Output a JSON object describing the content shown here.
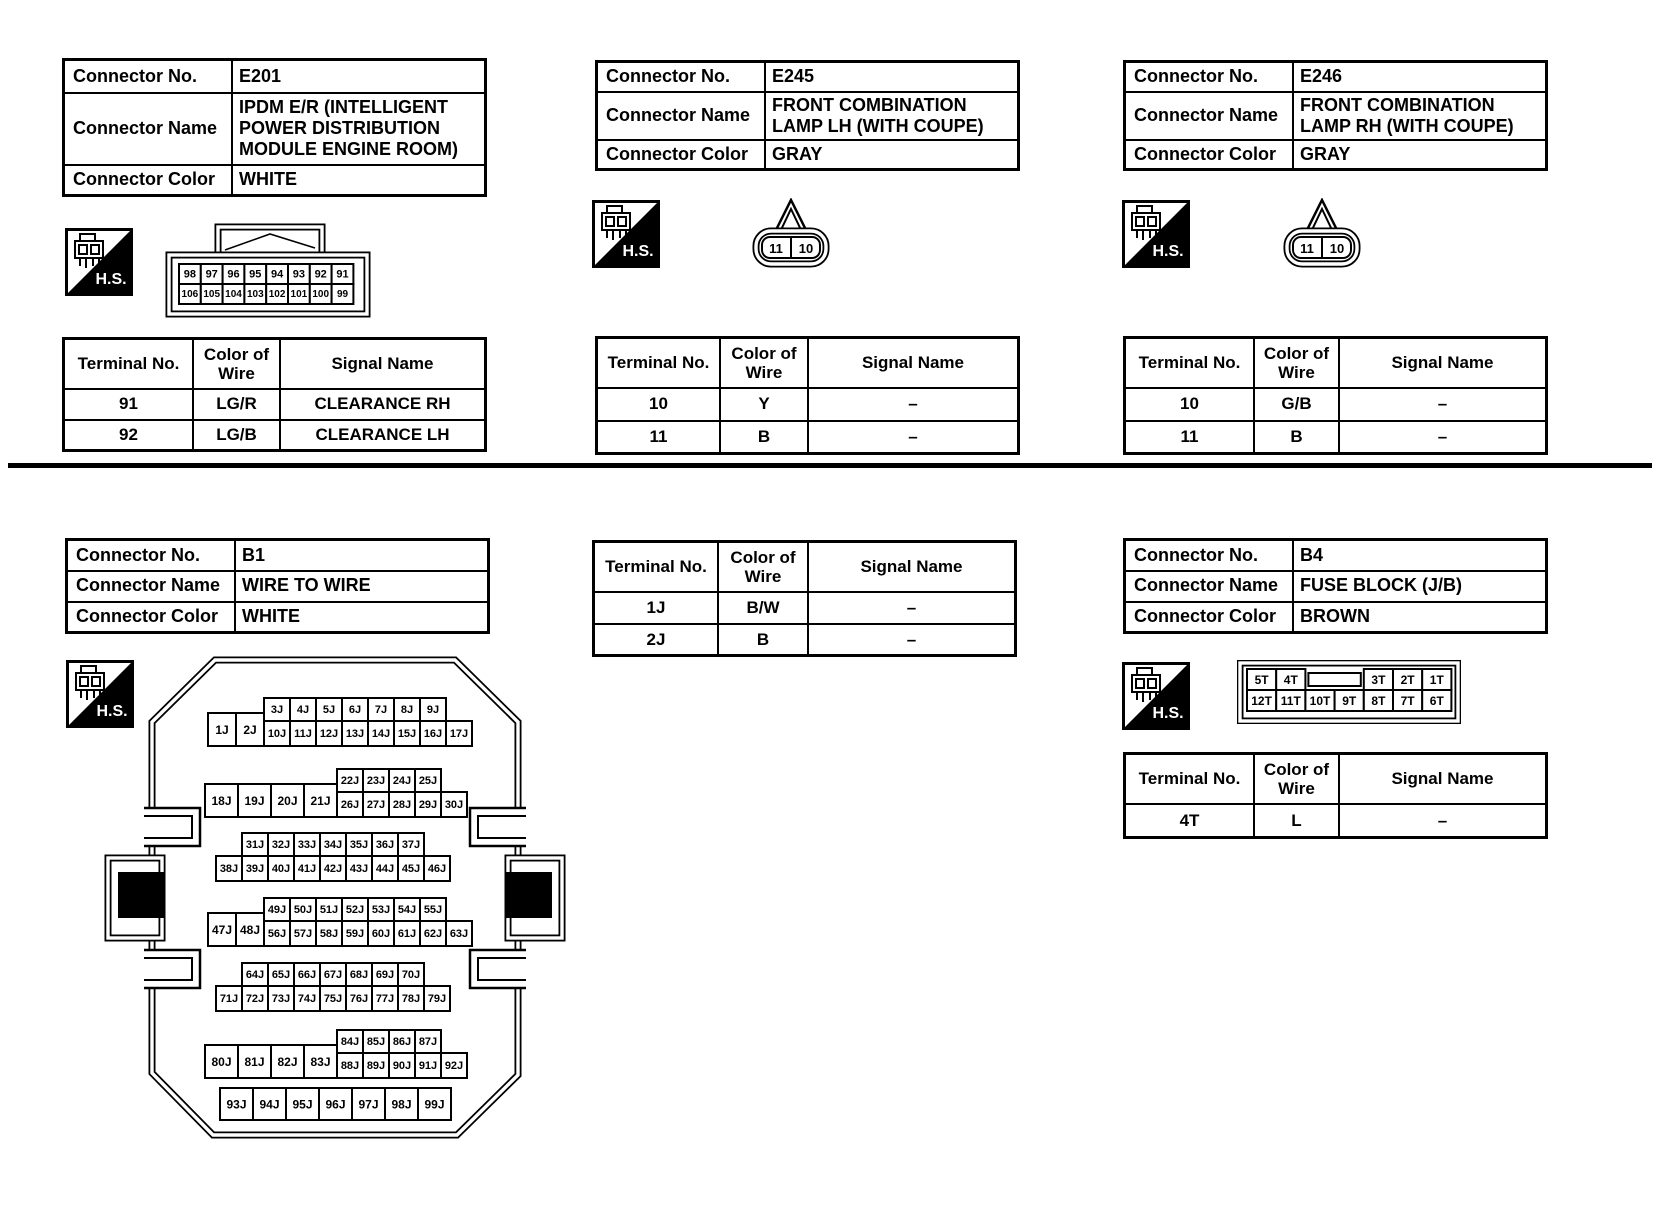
{
  "labels": {
    "connector_no": "Connector No.",
    "connector_name": "Connector Name",
    "connector_color": "Connector Color",
    "terminal_no": "Terminal No.",
    "color_of_wire": "Color of Wire",
    "signal_name": "Signal Name",
    "hs": "H.S."
  },
  "sections": {
    "top": [
      {
        "no": "E201",
        "name": "IPDM E/R (INTELLIGENT POWER DISTRIBUTION MODULE ENGINE ROOM)",
        "color": "WHITE",
        "terminals": [
          [
            "91",
            "LG/R",
            "CLEARANCE RH"
          ],
          [
            "92",
            "LG/B",
            "CLEARANCE LH"
          ]
        ],
        "pin_rows": [
          [
            "98",
            "97",
            "96",
            "95",
            "94",
            "93",
            "92",
            "91"
          ],
          [
            "106",
            "105",
            "104",
            "103",
            "102",
            "101",
            "100",
            "99"
          ]
        ]
      },
      {
        "no": "E245",
        "name": "FRONT COMBINATION LAMP LH (WITH COUPE)",
        "color": "GRAY",
        "terminals": [
          [
            "10",
            "Y",
            "–"
          ],
          [
            "11",
            "B",
            "–"
          ]
        ],
        "oval_pins": [
          "11",
          "10"
        ]
      },
      {
        "no": "E246",
        "name": "FRONT COMBINATION LAMP RH (WITH COUPE)",
        "color": "GRAY",
        "terminals": [
          [
            "10",
            "G/B",
            "–"
          ],
          [
            "11",
            "B",
            "–"
          ]
        ],
        "oval_pins": [
          "11",
          "10"
        ]
      }
    ],
    "bottom": {
      "b1": {
        "no": "B1",
        "name": "WIRE TO WIRE",
        "color": "WHITE",
        "terminals": [
          [
            "1J",
            "B/W",
            "–"
          ],
          [
            "2J",
            "B",
            "–"
          ]
        ],
        "pin_groups": [
          {
            "big": [
              "1J",
              "2J"
            ],
            "top": [
              "3J",
              "4J",
              "5J",
              "6J",
              "7J",
              "8J",
              "9J"
            ],
            "bottom": [
              "10J",
              "11J",
              "12J",
              "13J",
              "14J",
              "15J",
              "16J",
              "17J"
            ]
          },
          {
            "big": [
              "18J",
              "19J",
              "20J",
              "21J"
            ],
            "top": [
              "22J",
              "23J",
              "24J",
              "25J"
            ],
            "bottom": [
              "26J",
              "27J",
              "28J",
              "29J",
              "30J"
            ]
          },
          {
            "big": [],
            "top": [
              "31J",
              "32J",
              "33J",
              "34J",
              "35J",
              "36J",
              "37J"
            ],
            "bottom": [
              "38J",
              "39J",
              "40J",
              "41J",
              "42J",
              "43J",
              "44J",
              "45J",
              "46J"
            ]
          },
          {
            "big": [
              "47J",
              "48J"
            ],
            "top": [
              "49J",
              "50J",
              "51J",
              "52J",
              "53J",
              "54J",
              "55J"
            ],
            "bottom": [
              "56J",
              "57J",
              "58J",
              "59J",
              "60J",
              "61J",
              "62J",
              "63J"
            ]
          },
          {
            "big": [],
            "top": [
              "64J",
              "65J",
              "66J",
              "67J",
              "68J",
              "69J",
              "70J"
            ],
            "bottom": [
              "71J",
              "72J",
              "73J",
              "74J",
              "75J",
              "76J",
              "77J",
              "78J",
              "79J"
            ]
          },
          {
            "big": [
              "80J",
              "81J",
              "82J",
              "83J"
            ],
            "top": [
              "84J",
              "85J",
              "86J",
              "87J"
            ],
            "bottom": [
              "88J",
              "89J",
              "90J",
              "91J",
              "92J"
            ]
          },
          {
            "big": [],
            "top": [],
            "bottom": [
              "93J",
              "94J",
              "95J",
              "96J",
              "97J",
              "98J",
              "99J"
            ]
          }
        ]
      },
      "b4": {
        "no": "B4",
        "name": "FUSE BLOCK (J/B)",
        "color": "BROWN",
        "terminals": [
          [
            "4T",
            "L",
            "–"
          ]
        ],
        "pin_top": [
          "5T",
          "4T",
          "",
          "3T",
          "2T",
          "1T"
        ],
        "pin_bottom": [
          "12T",
          "11T",
          "10T",
          "9T",
          "8T",
          "7T",
          "6T"
        ]
      }
    }
  }
}
